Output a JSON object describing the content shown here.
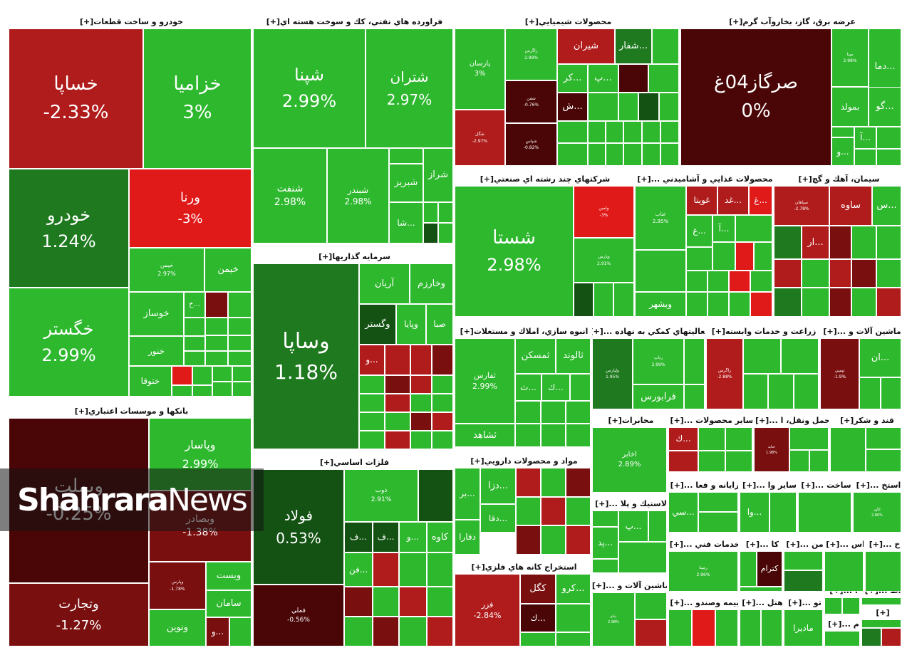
{
  "colors": {
    "strong_green": "#21a121",
    "green": "#2eb82e",
    "dark_green": "#1f7a1f",
    "deep_green": "#145214",
    "red": "#e01919",
    "dark_red": "#b01c1c",
    "maroon": "#7a0f0f",
    "deep_maroon": "#4a0606"
  },
  "watermark": {
    "bold": "Shahrara",
    "regular": "News"
  },
  "sections": [
    {
      "id": "auto",
      "title": "خودرو و ساخت قطعات",
      "plus": "[+]"
    },
    {
      "id": "oil",
      "title": "فراورده هاي نفتي، كك و سوخت هسته اي",
      "plus": "[+]"
    },
    {
      "id": "chem",
      "title": "محصولات شيميايي",
      "plus": "[+]"
    },
    {
      "id": "utility",
      "title": "عرضه برق، گاز، بخاروآب گرم",
      "plus": "[+]"
    },
    {
      "id": "multi",
      "title": "شركتهاي چند رشته اي صنعتي",
      "plus": "[+]"
    },
    {
      "id": "food",
      "title": "محصولات غذايي و آشاميدني ...",
      "plus": "[+]"
    },
    {
      "id": "cement",
      "title": "سيمان، آهك و گچ",
      "plus": "[+]"
    },
    {
      "id": "invest",
      "title": "سرمايه گذاريها",
      "plus": "[+]"
    },
    {
      "id": "bank",
      "title": "بانكها و موسسات اعتباري",
      "plus": "[+]"
    },
    {
      "id": "build",
      "title": "انبوه سازي، املاك و مستغلات",
      "plus": "[+]"
    },
    {
      "id": "support",
      "title": "فعاليتهاي كمكي به نهاده ...",
      "plus": "[+]"
    },
    {
      "id": "agri",
      "title": "زراعت و خدمات وابسته",
      "plus": "[+]"
    },
    {
      "id": "mach",
      "title": "ماشين آلات و ...",
      "plus": "[+]"
    },
    {
      "id": "metal",
      "title": "فلزات اساسي",
      "plus": "[+]"
    },
    {
      "id": "pharma",
      "title": "مواد و محصولات دارويي",
      "plus": "[+]"
    },
    {
      "id": "telecom",
      "title": "مخابرات",
      "plus": "[+]"
    },
    {
      "id": "other",
      "title": "ساير محصولات ...",
      "plus": "[+]"
    },
    {
      "id": "transport",
      "title": "حمل ونقل، ا ...",
      "plus": "[+]"
    },
    {
      "id": "sugar",
      "title": "قند و شكر",
      "plus": "[+]"
    },
    {
      "id": "mining",
      "title": "استخراج كانه هاي فلزي",
      "plus": "[+]"
    },
    {
      "id": "rubber",
      "title": "لاستيك و پلا ...",
      "plus": "[+]"
    },
    {
      "id": "computer",
      "title": "رايانه و فعا ...",
      "plus": "[+]"
    },
    {
      "id": "other2",
      "title": "ساير وا ...",
      "plus": "[+]"
    },
    {
      "id": "build2",
      "title": "ساخت ...",
      "plus": "[+]"
    },
    {
      "id": "extract",
      "title": "استخ ...",
      "plus": "[+]"
    },
    {
      "id": "engservice",
      "title": "خدمات فني ...",
      "plus": "[+]"
    },
    {
      "id": "ka",
      "title": "كا ...",
      "plus": "[+]"
    },
    {
      "id": "man",
      "title": "من ...",
      "plus": "[+]"
    },
    {
      "id": "as",
      "title": "اس ...",
      "plus": "[+]"
    },
    {
      "id": "kh",
      "title": "خ ...",
      "plus": "[+]"
    },
    {
      "id": "mach2",
      "title": "ماشين آلات و ...",
      "plus": "[+]"
    },
    {
      "id": "insure",
      "title": "بيمه وصندو ...",
      "plus": "[+]"
    },
    {
      "id": "hotel",
      "title": "هتل ...",
      "plus": "[+]"
    },
    {
      "id": "to",
      "title": "تو ...",
      "plus": "[+]"
    },
    {
      "id": "dot",
      "title": "ا ...",
      "plus": "[+]"
    },
    {
      "id": "at",
      "title": "اط ...",
      "plus": "[+]"
    },
    {
      "id": "m",
      "title": "م ...",
      "plus": "[+]"
    },
    {
      "id": "plus",
      "title": "",
      "plus": "[+]"
    }
  ],
  "tiles": [
    {
      "id": "khsapa",
      "name": "خساپا",
      "pct": "-2.33%"
    },
    {
      "id": "khazamia",
      "name": "خزاميا",
      "pct": "3%"
    },
    {
      "id": "khodro",
      "name": "خودرو",
      "pct": "1.24%"
    },
    {
      "id": "varna",
      "name": "ورنا",
      "pct": "-3%"
    },
    {
      "id": "khgostar",
      "name": "خگستر",
      "pct": "2.99%"
    },
    {
      "id": "kheimen2",
      "name": "خيمن",
      "pct": "2.97%"
    },
    {
      "id": "kheimen",
      "name": "خيمن",
      "pct": ""
    },
    {
      "id": "khosaz",
      "name": "خوساز",
      "pct": ""
    },
    {
      "id": "kh",
      "name": "خ...",
      "pct": ""
    },
    {
      "id": "khenvar",
      "name": "خنور",
      "pct": ""
    },
    {
      "id": "khtoga",
      "name": "ختوقا",
      "pct": ""
    },
    {
      "id": "shepna",
      "name": "شپنا",
      "pct": "2.99%"
    },
    {
      "id": "shetran",
      "name": "شتران",
      "pct": "2.97%"
    },
    {
      "id": "shenaft",
      "name": "شنفت",
      "pct": "2.98%"
    },
    {
      "id": "shebandar",
      "name": "شبندر",
      "pct": "2.98%"
    },
    {
      "id": "shebriz",
      "name": "شبريز",
      "pct": ""
    },
    {
      "id": "sheraz",
      "name": "شراز",
      "pct": ""
    },
    {
      "id": "sha",
      "name": "شا...",
      "pct": ""
    },
    {
      "id": "parsan",
      "name": "پارسان",
      "pct": "3%"
    },
    {
      "id": "zagros",
      "name": "زاگرس",
      "pct": "2.99%"
    },
    {
      "id": "shiran",
      "name": "شيران",
      "pct": ""
    },
    {
      "id": "shefa",
      "name": "شفار...",
      "pct": ""
    },
    {
      "id": "kar",
      "name": "كر...",
      "pct": ""
    },
    {
      "id": "p",
      "name": "پ...",
      "pct": ""
    },
    {
      "id": "sh",
      "name": "ش...",
      "pct": ""
    },
    {
      "id": "c1",
      "name": "شگل",
      "pct": "-2.97%"
    },
    {
      "id": "c2",
      "name": "شفن",
      "pct": "-0.76%"
    },
    {
      "id": "c3",
      "name": "شپاس",
      "pct": "-0.82%"
    },
    {
      "id": "segaz",
      "name": "صرگاز04غ",
      "pct": "0%"
    },
    {
      "id": "dama",
      "name": "دما...",
      "pct": ""
    },
    {
      "id": "go",
      "name": "گو...",
      "pct": ""
    },
    {
      "id": "bemold",
      "name": "بمولد",
      "pct": ""
    },
    {
      "id": "a",
      "name": "آ...",
      "pct": ""
    },
    {
      "id": "vo",
      "name": "و...",
      "pct": ""
    },
    {
      "id": "u1",
      "name": "مپنا",
      "pct": "2.98%"
    },
    {
      "id": "shasta",
      "name": "شستا",
      "pct": "2.98%"
    },
    {
      "id": "vamin",
      "name": "وامين",
      "pct": "-3%"
    },
    {
      "id": "m1",
      "name": "وپارس",
      "pct": "2.91%"
    },
    {
      "id": "ghanab",
      "name": "غناب",
      "pct": "2.95%"
    },
    {
      "id": "ghoveita",
      "name": "غويتا",
      "pct": ""
    },
    {
      "id": "ghad",
      "name": "غد...",
      "pct": ""
    },
    {
      "id": "gh",
      "name": "غ...",
      "pct": ""
    },
    {
      "id": "a2",
      "name": "آ...",
      "pct": ""
    },
    {
      "id": "gh2",
      "name": "غ...",
      "pct": ""
    },
    {
      "id": "vebshahr",
      "name": "وبشهر",
      "pct": ""
    },
    {
      "id": "sepahan",
      "name": "سپاهان",
      "pct": "-2.78%"
    },
    {
      "id": "saveh",
      "name": "ساوه",
      "pct": ""
    },
    {
      "id": "s",
      "name": "س...",
      "pct": ""
    },
    {
      "id": "ar",
      "name": "ار...",
      "pct": ""
    },
    {
      "id": "vesapa",
      "name": "وساپا",
      "pct": "1.18%"
    },
    {
      "id": "arian",
      "name": "آريان",
      "pct": ""
    },
    {
      "id": "vekharazm",
      "name": "وخارزم",
      "pct": ""
    },
    {
      "id": "vegostar",
      "name": "وگستر",
      "pct": ""
    },
    {
      "id": "vapaya",
      "name": "وپايا",
      "pct": ""
    },
    {
      "id": "saba",
      "name": "صبا",
      "pct": ""
    },
    {
      "id": "v",
      "name": "و...",
      "pct": ""
    },
    {
      "id": "vebemellat",
      "name": "وبملت",
      "pct": "-0.25%"
    },
    {
      "id": "vepasar",
      "name": "وپاسار",
      "pct": "2.99%"
    },
    {
      "id": "vebsader",
      "name": "وبصادر",
      "pct": "-1.38%"
    },
    {
      "id": "vetejarat",
      "name": "وتجارت",
      "pct": "-1.27%"
    },
    {
      "id": "vebparsian",
      "name": "وپارس",
      "pct": "-1.78%"
    },
    {
      "id": "vest",
      "name": "وبست",
      "pct": ""
    },
    {
      "id": "saman",
      "name": "سامان",
      "pct": ""
    },
    {
      "id": "venovin",
      "name": "ونوين",
      "pct": ""
    },
    {
      "id": "v2",
      "name": "و...",
      "pct": ""
    },
    {
      "id": "taferas",
      "name": "ثفارس",
      "pct": "2.99%"
    },
    {
      "id": "temaskan",
      "name": "ثمسكن",
      "pct": ""
    },
    {
      "id": "talvand",
      "name": "ثالوند",
      "pct": ""
    },
    {
      "id": "k",
      "name": "ك...",
      "pct": ""
    },
    {
      "id": "t",
      "name": "ث...",
      "pct": ""
    },
    {
      "id": "teshahed",
      "name": "ثشاهد",
      "pct": ""
    },
    {
      "id": "sup1",
      "name": "ولپارس",
      "pct": "1.95%"
    },
    {
      "id": "sup2",
      "name": "رتاپ",
      "pct": "2.99%"
    },
    {
      "id": "farabors",
      "name": "فرابورس",
      "pct": ""
    },
    {
      "id": "zar",
      "name": "زاگرس",
      "pct": "-2.88%"
    },
    {
      "id": "mach1",
      "name": "تپمپي",
      "pct": "-1.9%"
    },
    {
      "id": "an",
      "name": "ان...",
      "pct": ""
    },
    {
      "id": "foolad",
      "name": "فولاد",
      "pct": "0.53%"
    },
    {
      "id": "zob",
      "name": "ذوب",
      "pct": "2.91%"
    },
    {
      "id": "kave",
      "name": "كاوه",
      "pct": ""
    },
    {
      "id": "fmeli",
      "name": "فملي",
      "pct": "-0.56%"
    },
    {
      "id": "f",
      "name": "ف...",
      "pct": ""
    },
    {
      "id": "f2",
      "name": "ف...",
      "pct": ""
    },
    {
      "id": "vo2",
      "name": "و...",
      "pct": ""
    },
    {
      "id": "fan",
      "name": "فن...",
      "pct": ""
    },
    {
      "id": "daza",
      "name": "دزا...",
      "pct": ""
    },
    {
      "id": "dbar",
      "name": "بر...",
      "pct": ""
    },
    {
      "id": "daga",
      "name": "دقا...",
      "pct": ""
    },
    {
      "id": "dfara",
      "name": "دفارا",
      "pct": ""
    },
    {
      "id": "akhaber",
      "name": "اخابر",
      "pct": "2.89%"
    },
    {
      "id": "ok",
      "name": "ك...",
      "pct": ""
    },
    {
      "id": "tr1",
      "name": "حتايد",
      "pct": "1.98%"
    },
    {
      "id": "fazar",
      "name": "فزر",
      "pct": "-2.84%"
    },
    {
      "id": "kegel",
      "name": "كگل",
      "pct": ""
    },
    {
      "id": "kero",
      "name": "كرو...",
      "pct": ""
    },
    {
      "id": "k2",
      "name": "ك...",
      "pct": ""
    },
    {
      "id": "p2",
      "name": "پ...",
      "pct": ""
    },
    {
      "id": "pad",
      "name": "پد...",
      "pct": ""
    },
    {
      "id": "si",
      "name": "سي...",
      "pct": ""
    },
    {
      "id": "vaa",
      "name": "وا...",
      "pct": ""
    },
    {
      "id": "ex1",
      "name": "كگهر",
      "pct": "2.86%"
    },
    {
      "id": "eng1",
      "name": "رمپنا",
      "pct": "2.96%"
    },
    {
      "id": "kteram",
      "name": "كترام",
      "pct": ""
    },
    {
      "id": "mach2t",
      "name": "تپكو",
      "pct": "2.98%"
    },
    {
      "id": "madira",
      "name": "ماديرا",
      "pct": ""
    }
  ]
}
